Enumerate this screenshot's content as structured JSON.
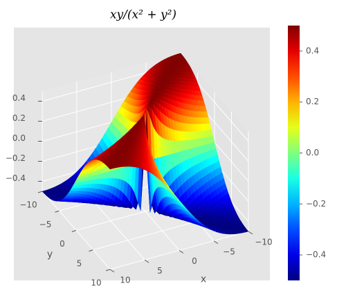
{
  "chart_data": {
    "type": "surface3d",
    "title": "xy/(x² + y²)",
    "xlabel": "x",
    "ylabel": "y",
    "xlim": [
      -10,
      10
    ],
    "ylim": [
      -10,
      10
    ],
    "zlim": [
      -0.5,
      0.5
    ],
    "xticks": [
      {
        "value": -10,
        "label": "−10"
      },
      {
        "value": -5,
        "label": "−5"
      },
      0,
      5,
      10
    ],
    "yticks": [
      {
        "value": -10,
        "label": "−10"
      },
      {
        "value": -5,
        "label": "−5"
      },
      0,
      5,
      10
    ],
    "zticks": [
      {
        "value": -0.4,
        "label": "−0.4"
      },
      {
        "value": -0.2,
        "label": "−0.2"
      },
      {
        "value": 0,
        "label": "0.0"
      },
      0.2,
      0.4
    ],
    "colormap": "jet",
    "grid": true,
    "colorbar": {
      "clim": [
        -0.5,
        0.5
      ],
      "ticks": [
        {
          "value": -0.4,
          "label": "−0.4"
        },
        {
          "value": -0.2,
          "label": "−0.2"
        },
        {
          "value": 0,
          "label": "0.0"
        },
        0.2,
        0.4
      ]
    }
  }
}
